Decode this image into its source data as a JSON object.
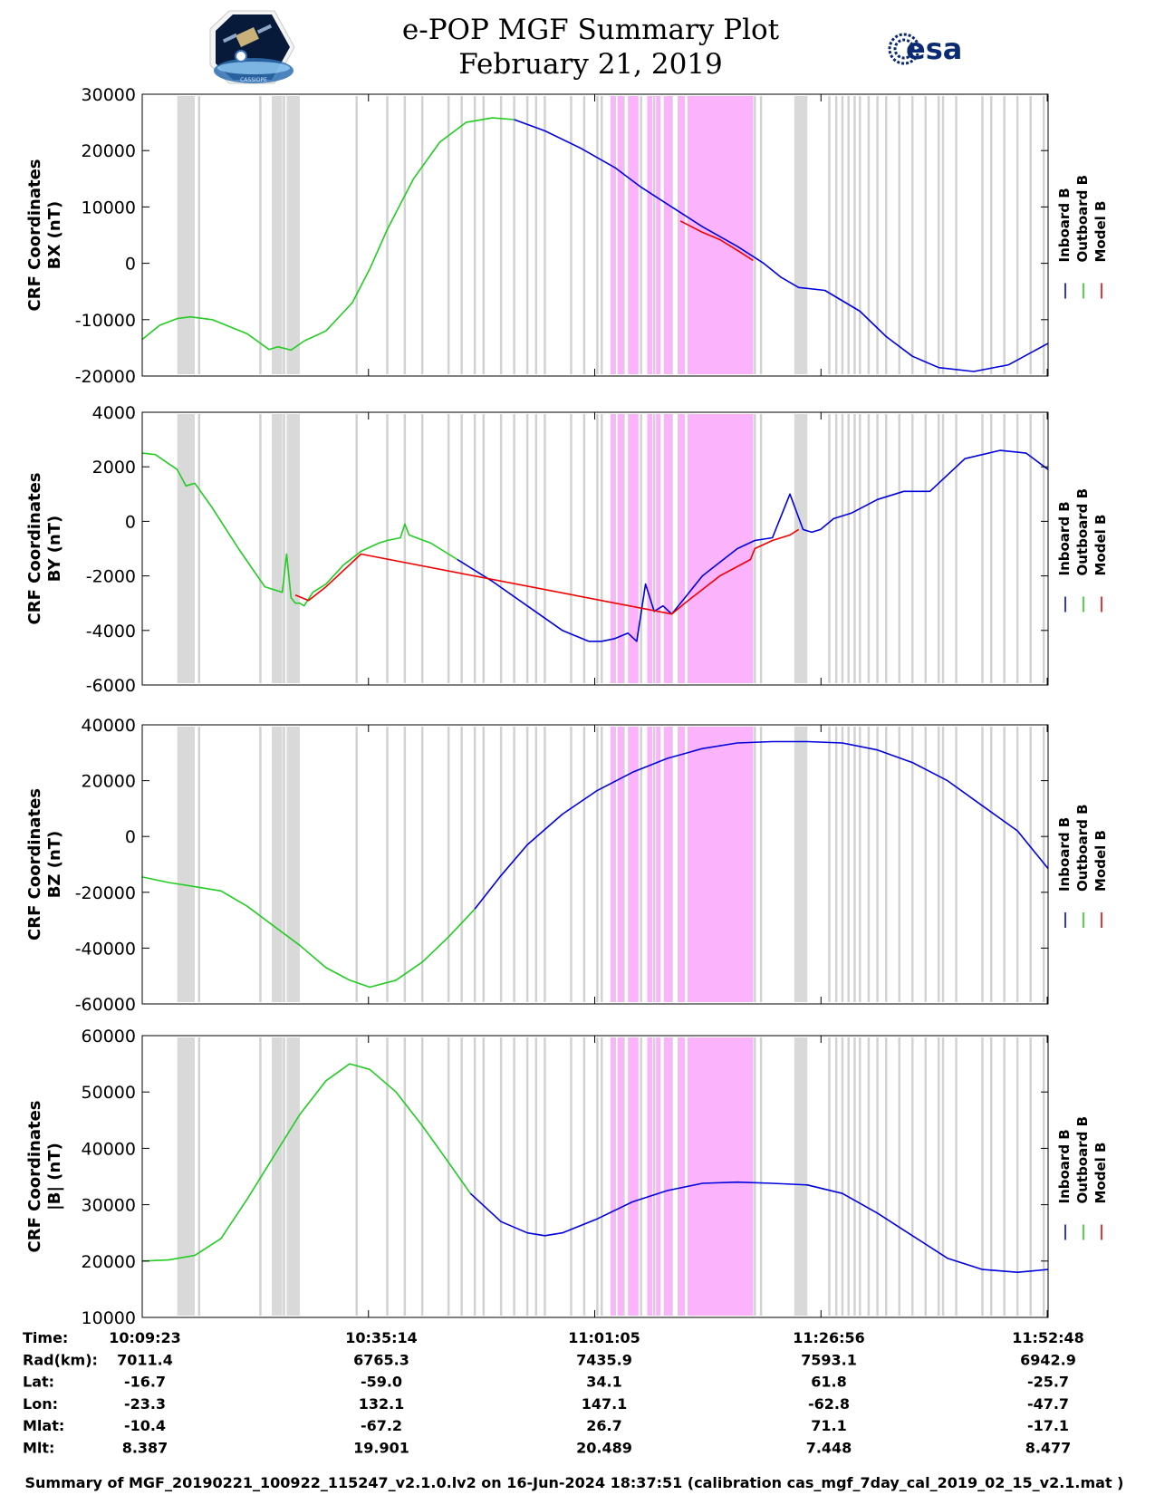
{
  "title": "e-POP MGF Summary Plot",
  "subtitle": "February 21, 2019",
  "logos": {
    "left": "CASSIOPE",
    "right": "esa"
  },
  "legend": [
    {
      "label": "Inboard B",
      "color": "#0000dd"
    },
    {
      "label": "Outboard B",
      "color": "#22cc22"
    },
    {
      "label": "Model B",
      "color": "#ee0000"
    }
  ],
  "info_rows": [
    {
      "label": "Time:",
      "values": [
        "10:09:23",
        "10:35:14",
        "11:01:05",
        "11:26:56",
        "11:52:48"
      ]
    },
    {
      "label": "Rad(km):",
      "values": [
        "7011.4",
        "6765.3",
        "7435.9",
        "7593.1",
        "6942.9"
      ]
    },
    {
      "label": "Lat:",
      "values": [
        "-16.7",
        "-59.0",
        "34.1",
        "61.8",
        "-25.7"
      ]
    },
    {
      "label": "Lon:",
      "values": [
        "-23.3",
        "132.1",
        "147.1",
        "-62.8",
        "-47.7"
      ]
    },
    {
      "label": "Mlat:",
      "values": [
        "-10.4",
        "-67.2",
        "26.7",
        "71.1",
        "-17.1"
      ]
    },
    {
      "label": "Mlt:",
      "values": [
        "8.387",
        "19.901",
        "20.489",
        "7.448",
        "8.477"
      ]
    }
  ],
  "footer": "Summary of MGF_20190221_100922_115247_v2.1.0.lv2 on 16-Jun-2024 18:37:51 (calibration cas_mgf_7day_cal_2019_02_15_v2.1.mat )",
  "chart_data": [
    {
      "type": "line",
      "ylabel_line1": "CRF Coordinates",
      "ylabel_line2": "BX (nT)",
      "xlim_min": [
        0,
        103.5
      ],
      "ylim": [
        -20000,
        30000
      ],
      "yticks": [
        "30000",
        "20000",
        "10000",
        "0",
        "-10000",
        "-20000"
      ],
      "ytick_values": [
        30000,
        20000,
        10000,
        0,
        -10000,
        -20000
      ],
      "series": [
        {
          "name": "Outboard B",
          "x": [
            0,
            2,
            4,
            5.5,
            8,
            12,
            14.5,
            15.5,
            17,
            18.5,
            21,
            24,
            26,
            28,
            31,
            34,
            37,
            40,
            42.5
          ],
          "values": [
            -13500,
            -11000,
            -9800,
            -9500,
            -10000,
            -12500,
            -15300,
            -14800,
            -15400,
            -13800,
            -12000,
            -7000,
            -1000,
            6000,
            15000,
            21500,
            25000,
            25800,
            25500
          ]
        },
        {
          "name": "Inboard B",
          "x": [
            42.5,
            46,
            50,
            54,
            57,
            60,
            62,
            64,
            68,
            71,
            73,
            75,
            78,
            82,
            85,
            88,
            91,
            95,
            99,
            103.5
          ],
          "values": [
            25500,
            23500,
            20500,
            17000,
            13500,
            10500,
            8500,
            6500,
            3000,
            0,
            -2500,
            -4300,
            -4800,
            -8500,
            -13000,
            -16500,
            -18500,
            -19200,
            -18000,
            -14200
          ]
        },
        {
          "name": "Model B",
          "x": [
            61.5,
            64,
            66,
            68,
            69.8
          ],
          "values": [
            7500,
            5500,
            4200,
            2300,
            500
          ]
        }
      ]
    },
    {
      "type": "line",
      "ylabel_line1": "CRF Coordinates",
      "ylabel_line2": "BY (nT)",
      "xlim_min": [
        0,
        103.5
      ],
      "ylim": [
        -6000,
        4000
      ],
      "yticks": [
        "4000",
        "2000",
        "0",
        "-2000",
        "-4000",
        "-6000"
      ],
      "ytick_values": [
        4000,
        2000,
        0,
        -2000,
        -4000,
        -6000
      ],
      "series": [
        {
          "name": "Outboard B",
          "x": [
            0,
            1.5,
            4,
            5,
            6,
            8,
            11,
            14,
            16,
            16.5,
            17,
            17.5,
            18,
            18.5,
            19.5,
            21,
            23,
            25,
            27,
            28,
            29.5,
            30,
            30.5,
            33,
            36
          ],
          "values": [
            2500,
            2450,
            1900,
            1300,
            1400,
            500,
            -1000,
            -2400,
            -2600,
            -1200,
            -2800,
            -3000,
            -3000,
            -3100,
            -2600,
            -2300,
            -1600,
            -1100,
            -800,
            -700,
            -600,
            -100,
            -500,
            -800,
            -1400
          ]
        },
        {
          "name": "Inboard B",
          "x": [
            36,
            40,
            44,
            48,
            51,
            52.5,
            54,
            55.5,
            56.5,
            57.5,
            58.5,
            59.5,
            60.5,
            61.5,
            62.5,
            64,
            66,
            68,
            70,
            72,
            74,
            75.5,
            76.5,
            77.5,
            79,
            81,
            84,
            87,
            90,
            94,
            98,
            101,
            103.5
          ],
          "values": [
            -1400,
            -2200,
            -3100,
            -4000,
            -4400,
            -4400,
            -4300,
            -4100,
            -4400,
            -2300,
            -3300,
            -3100,
            -3400,
            -3000,
            -2600,
            -2000,
            -1500,
            -1000,
            -700,
            -600,
            1000,
            -300,
            -400,
            -300,
            100,
            300,
            800,
            1100,
            1100,
            2300,
            2600,
            2500,
            1900
          ]
        },
        {
          "name": "Model B",
          "x": [
            17.5,
            19,
            21,
            23,
            25,
            60.5,
            62,
            64,
            66,
            69.5,
            70,
            72,
            74,
            75
          ],
          "values": [
            -2700,
            -2900,
            -2400,
            -1800,
            -1200,
            -3400,
            -3000,
            -2500,
            -2000,
            -1400,
            -1000,
            -700,
            -500,
            -300
          ]
        }
      ]
    },
    {
      "type": "line",
      "ylabel_line1": "CRF Coordinates",
      "ylabel_line2": "BZ (nT)",
      "xlim_min": [
        0,
        103.5
      ],
      "ylim": [
        -60000,
        40000
      ],
      "yticks": [
        "40000",
        "20000",
        "0",
        "-20000",
        "-40000",
        "-60000"
      ],
      "ytick_values": [
        40000,
        20000,
        0,
        -20000,
        -40000,
        -60000
      ],
      "series": [
        {
          "name": "Outboard B",
          "x": [
            0,
            3,
            6,
            9,
            12,
            15,
            18,
            21,
            23.7,
            26,
            29,
            32,
            35,
            38
          ],
          "values": [
            -14500,
            -16500,
            -18000,
            -19500,
            -25000,
            -32000,
            -39000,
            -47000,
            -51500,
            -54000,
            -51500,
            -45000,
            -36000,
            -26000
          ]
        },
        {
          "name": "Inboard B",
          "x": [
            38,
            41,
            44,
            48,
            52,
            56,
            60,
            64,
            68,
            72,
            76,
            80,
            84,
            88,
            92,
            96,
            100,
            103.5
          ],
          "values": [
            -26000,
            -14000,
            -3000,
            8000,
            16500,
            23000,
            28000,
            31500,
            33500,
            34000,
            34000,
            33500,
            31000,
            26500,
            20000,
            11000,
            2000,
            -11500
          ]
        }
      ]
    },
    {
      "type": "line",
      "ylabel_line1": "CRF Coordinates",
      "ylabel_line2": "|B| (nT)",
      "xlim_min": [
        0,
        103.5
      ],
      "ylim": [
        10000,
        60000
      ],
      "yticks": [
        "60000",
        "50000",
        "40000",
        "30000",
        "20000",
        "10000"
      ],
      "ytick_values": [
        60000,
        50000,
        40000,
        30000,
        20000,
        10000
      ],
      "series": [
        {
          "name": "Outboard B",
          "x": [
            0,
            3,
            6,
            9,
            12,
            15,
            18,
            21,
            23.7,
            26,
            29,
            32,
            35,
            37.5
          ],
          "values": [
            20000,
            20200,
            21000,
            24000,
            31000,
            38500,
            46000,
            52000,
            55000,
            54000,
            50000,
            44000,
            37500,
            32000
          ]
        },
        {
          "name": "Inboard B",
          "x": [
            37.5,
            41,
            44,
            46,
            48,
            52,
            56,
            60,
            64,
            68,
            72,
            76,
            80,
            84,
            88,
            92,
            96,
            100,
            103.5
          ],
          "values": [
            32000,
            27000,
            25000,
            24500,
            25000,
            27500,
            30500,
            32500,
            33800,
            34000,
            33800,
            33500,
            32000,
            28500,
            24500,
            20500,
            18500,
            18000,
            18500
          ]
        }
      ]
    }
  ],
  "time_marks": {
    "gray_bands": [
      [
        4,
        6
      ],
      [
        14.8,
        16
      ],
      [
        16.5,
        18
      ]
    ],
    "gray_lines": [
      6.5,
      13.5,
      16.2,
      24.5,
      28,
      30,
      32,
      35,
      36.5,
      38,
      39,
      41,
      42.5,
      44,
      45,
      46,
      49,
      50.5,
      52,
      52.5,
      54,
      55,
      57,
      58.5,
      60.5,
      61.3,
      70,
      70.7,
      78.5,
      79.3,
      80,
      80.7,
      81.4,
      82,
      83,
      84,
      85,
      86.5,
      88,
      89.5,
      91,
      91.5,
      93,
      96,
      97,
      98.5,
      100,
      101.5,
      103
    ],
    "gray_band_late": [
      [
        74.5,
        76
      ]
    ],
    "pink_bands": [
      [
        53.5,
        54
      ],
      [
        54.3,
        55
      ],
      [
        55.5,
        56.7
      ],
      [
        57.7,
        58.3
      ],
      [
        58.7,
        59.2
      ],
      [
        59.6,
        60.5
      ],
      [
        61.3,
        62
      ],
      [
        62.3,
        69.8
      ]
    ]
  }
}
